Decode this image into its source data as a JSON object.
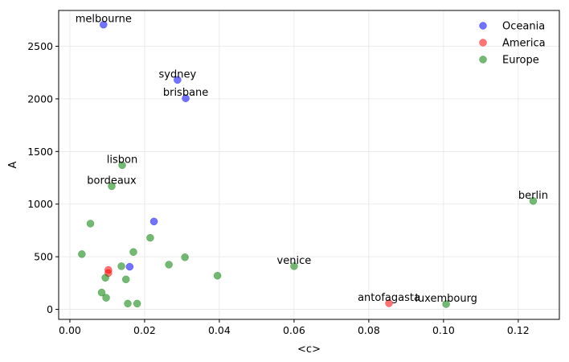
{
  "chart_data": {
    "type": "scatter",
    "xlabel": "<c>",
    "ylabel": "A",
    "xlim": [
      -0.003,
      0.131
    ],
    "ylim": [
      -95,
      2840
    ],
    "xticks": [
      0.0,
      0.02,
      0.04,
      0.06,
      0.08,
      0.1,
      0.12
    ],
    "xtick_labels": [
      "0.00",
      "0.02",
      "0.04",
      "0.06",
      "0.08",
      "0.10",
      "0.12"
    ],
    "yticks": [
      0,
      500,
      1000,
      1500,
      2000,
      2500
    ],
    "ytick_labels": [
      "0",
      "500",
      "1000",
      "1500",
      "2000",
      "2500"
    ],
    "grid": true,
    "legend_position": "top-right",
    "series": [
      {
        "name": "Oceania",
        "color": "#0000ff",
        "points": [
          {
            "x": 0.009,
            "y": 2705,
            "label": "melbourne"
          },
          {
            "x": 0.0288,
            "y": 2180,
            "label": "sydney"
          },
          {
            "x": 0.031,
            "y": 2005,
            "label": "brisbane"
          },
          {
            "x": 0.0225,
            "y": 835
          },
          {
            "x": 0.016,
            "y": 405
          }
        ]
      },
      {
        "name": "America",
        "color": "#ff0000",
        "points": [
          {
            "x": 0.0854,
            "y": 58,
            "label": "antofagasta"
          },
          {
            "x": 0.0103,
            "y": 375
          },
          {
            "x": 0.0103,
            "y": 345
          }
        ]
      },
      {
        "name": "Europe",
        "color": "#008000",
        "points": [
          {
            "x": 0.014,
            "y": 1370,
            "label": "lisbon"
          },
          {
            "x": 0.0112,
            "y": 1170,
            "label": "bordeaux"
          },
          {
            "x": 0.124,
            "y": 1030,
            "label": "berlin"
          },
          {
            "x": 0.06,
            "y": 410,
            "label": "venice"
          },
          {
            "x": 0.1007,
            "y": 50,
            "label": "luxembourg"
          },
          {
            "x": 0.0055,
            "y": 815
          },
          {
            "x": 0.0032,
            "y": 525
          },
          {
            "x": 0.0215,
            "y": 680
          },
          {
            "x": 0.017,
            "y": 545
          },
          {
            "x": 0.0308,
            "y": 495
          },
          {
            "x": 0.0265,
            "y": 425
          },
          {
            "x": 0.0138,
            "y": 410
          },
          {
            "x": 0.0095,
            "y": 300
          },
          {
            "x": 0.015,
            "y": 285
          },
          {
            "x": 0.0395,
            "y": 320
          },
          {
            "x": 0.0085,
            "y": 160
          },
          {
            "x": 0.0097,
            "y": 110
          },
          {
            "x": 0.0155,
            "y": 55
          },
          {
            "x": 0.018,
            "y": 55
          }
        ]
      }
    ]
  }
}
